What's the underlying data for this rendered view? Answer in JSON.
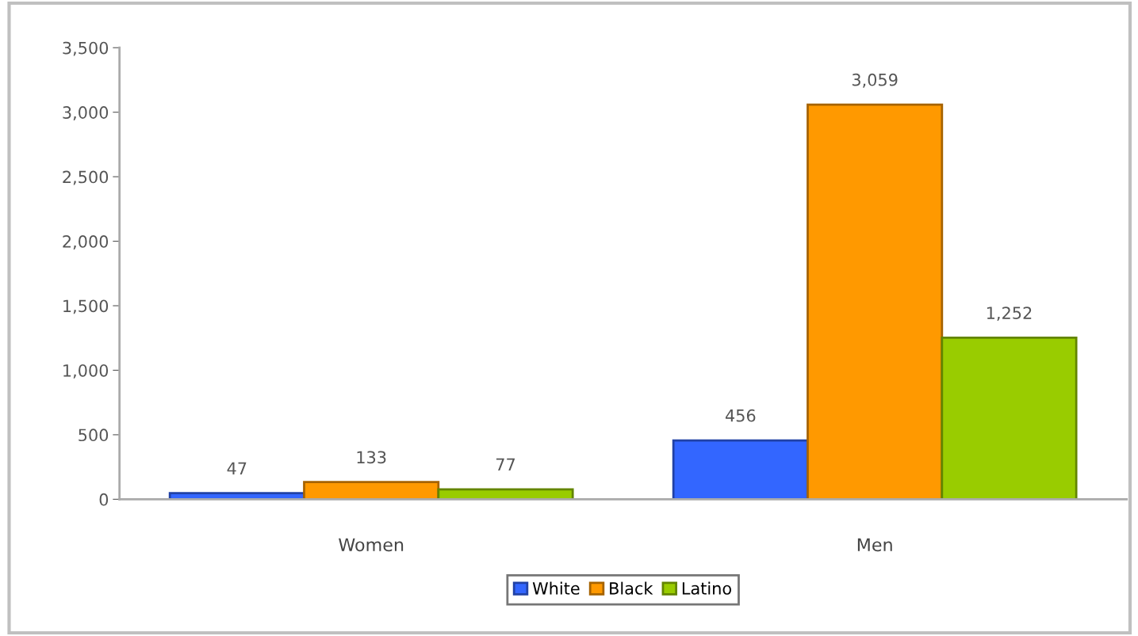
{
  "chart_data": {
    "type": "bar",
    "categories": [
      "Women",
      "Men"
    ],
    "series": [
      {
        "name": "White",
        "color": "#3366ff",
        "values": [
          47,
          456
        ]
      },
      {
        "name": "Black",
        "color": "#ff9900",
        "values": [
          133,
          3059
        ]
      },
      {
        "name": "Latino",
        "color": "#99cc00",
        "values": [
          77,
          1252
        ]
      }
    ],
    "value_labels": [
      [
        "47",
        "456"
      ],
      [
        "133",
        "3,059"
      ],
      [
        "77",
        "1,252"
      ]
    ],
    "ylim": [
      0,
      3500
    ],
    "yticks": [
      {
        "value": 0,
        "label": "0"
      },
      {
        "value": 500,
        "label": "500"
      },
      {
        "value": 1000,
        "label": "1,000"
      },
      {
        "value": 1500,
        "label": "1,500"
      },
      {
        "value": 2000,
        "label": "2,000"
      },
      {
        "value": 2500,
        "label": "2,500"
      },
      {
        "value": 3000,
        "label": "3,000"
      },
      {
        "value": 3500,
        "label": "3,500"
      }
    ],
    "grid": false,
    "legend": "bottom"
  }
}
